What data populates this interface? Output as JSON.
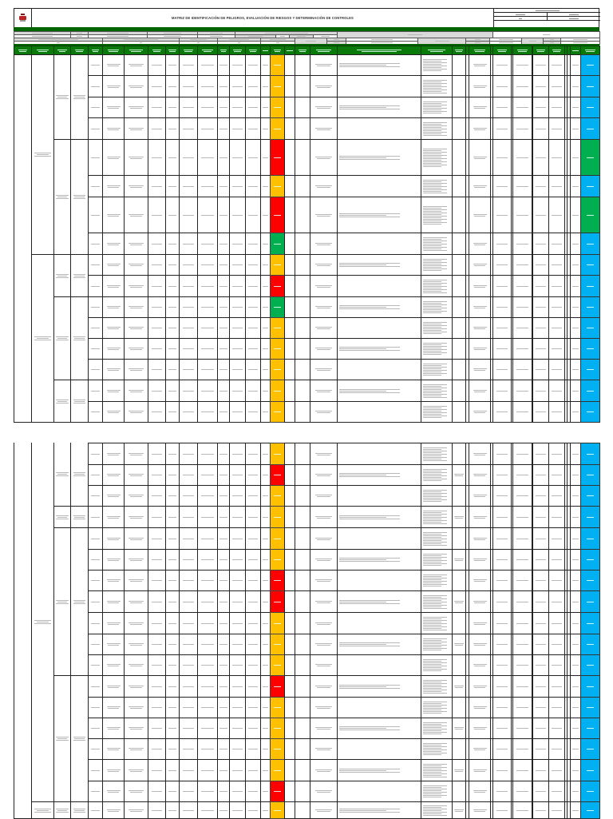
{
  "document": {
    "title": "MATRIZ DE IDENTIFICACIÓN DE PELIGROS, EVALUACIÓN DE RIESGOS Y DETERMINACIÓN DE CONTROLES",
    "logo_icon": "company-crest-icon"
  },
  "colors": {
    "header_green": "#0a7a0a",
    "band_green": "#006400",
    "label_gray": "#d9d9d9",
    "risk_high": "#FF0000",
    "risk_medium": "#FFC000",
    "risk_low": "#00B050",
    "acceptability_blue": "#00B0F0",
    "acceptability_green": "#00B050"
  },
  "pages": [
    {
      "risk_colors": [
        "#FFC000",
        "#FFC000",
        "#FFC000",
        "#FFC000",
        "#FF0000",
        "#FFC000",
        "#FF0000",
        "#00B050",
        "#FFC000",
        "#FF0000",
        "#00B050",
        "#FFC000",
        "#FFC000",
        "#FFC000",
        "#FFC000",
        "#FFC000"
      ],
      "acceptability_colors": [
        "#00B0F0",
        "#00B0F0",
        "#00B0F0",
        "#00B0F0",
        "#00B050",
        "#00B0F0",
        "#00B050",
        "#00B0F0",
        "#00B0F0",
        "#00B0F0",
        "#00B0F0",
        "#00B0F0",
        "#00B0F0",
        "#00B0F0",
        "#00B0F0",
        "#00B0F0"
      ]
    },
    {
      "risk_colors": [
        "#FFC000",
        "#FF0000",
        "#FFC000",
        "#FFC000",
        "#FFC000",
        "#FFC000",
        "#FF0000",
        "#FF0000",
        "#FFC000",
        "#FFC000",
        "#FFC000",
        "#FF0000",
        "#FFC000",
        "#FFC000",
        "#FFC000",
        "#FFC000",
        "#FF0000",
        "#FFC000"
      ],
      "acceptability_colors": [
        "#00B0F0",
        "#00B0F0",
        "#00B0F0",
        "#00B0F0",
        "#00B0F0",
        "#00B0F0",
        "#00B0F0",
        "#00B0F0",
        "#00B0F0",
        "#00B0F0",
        "#00B0F0",
        "#00B0F0",
        "#00B0F0",
        "#00B0F0",
        "#00B0F0",
        "#00B0F0",
        "#00B0F0",
        "#00B0F0"
      ]
    }
  ]
}
